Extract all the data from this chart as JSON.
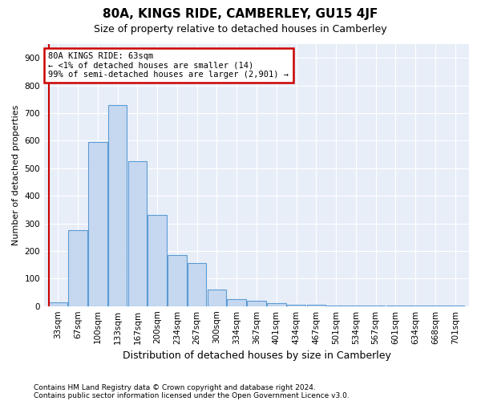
{
  "title": "80A, KINGS RIDE, CAMBERLEY, GU15 4JF",
  "subtitle": "Size of property relative to detached houses in Camberley",
  "xlabel": "Distribution of detached houses by size in Camberley",
  "ylabel": "Number of detached properties",
  "footnote1": "Contains HM Land Registry data © Crown copyright and database right 2024.",
  "footnote2": "Contains public sector information licensed under the Open Government Licence v3.0.",
  "annotation_line1": "80A KINGS RIDE: 63sqm",
  "annotation_line2": "← <1% of detached houses are smaller (14)",
  "annotation_line3": "99% of semi-detached houses are larger (2,901) →",
  "bar_color": "#c5d8f0",
  "bar_edge_color": "#5b9bd5",
  "highlight_color": "#cc0000",
  "background_color": "#e8eef8",
  "categories": [
    "33sqm",
    "67sqm",
    "100sqm",
    "133sqm",
    "167sqm",
    "200sqm",
    "234sqm",
    "267sqm",
    "300sqm",
    "334sqm",
    "367sqm",
    "401sqm",
    "434sqm",
    "467sqm",
    "501sqm",
    "534sqm",
    "567sqm",
    "601sqm",
    "634sqm",
    "668sqm",
    "701sqm"
  ],
  "values": [
    14,
    275,
    595,
    730,
    525,
    330,
    185,
    155,
    60,
    25,
    20,
    10,
    6,
    5,
    3,
    2,
    2,
    1,
    1,
    1,
    1
  ],
  "ylim": [
    0,
    950
  ],
  "yticks": [
    0,
    100,
    200,
    300,
    400,
    500,
    600,
    700,
    800,
    900
  ],
  "grid_color": "#ffffff",
  "tick_fontsize": 7.5,
  "ylabel_fontsize": 8,
  "xlabel_fontsize": 9,
  "title_fontsize": 11,
  "subtitle_fontsize": 9,
  "footnote_fontsize": 6.5
}
